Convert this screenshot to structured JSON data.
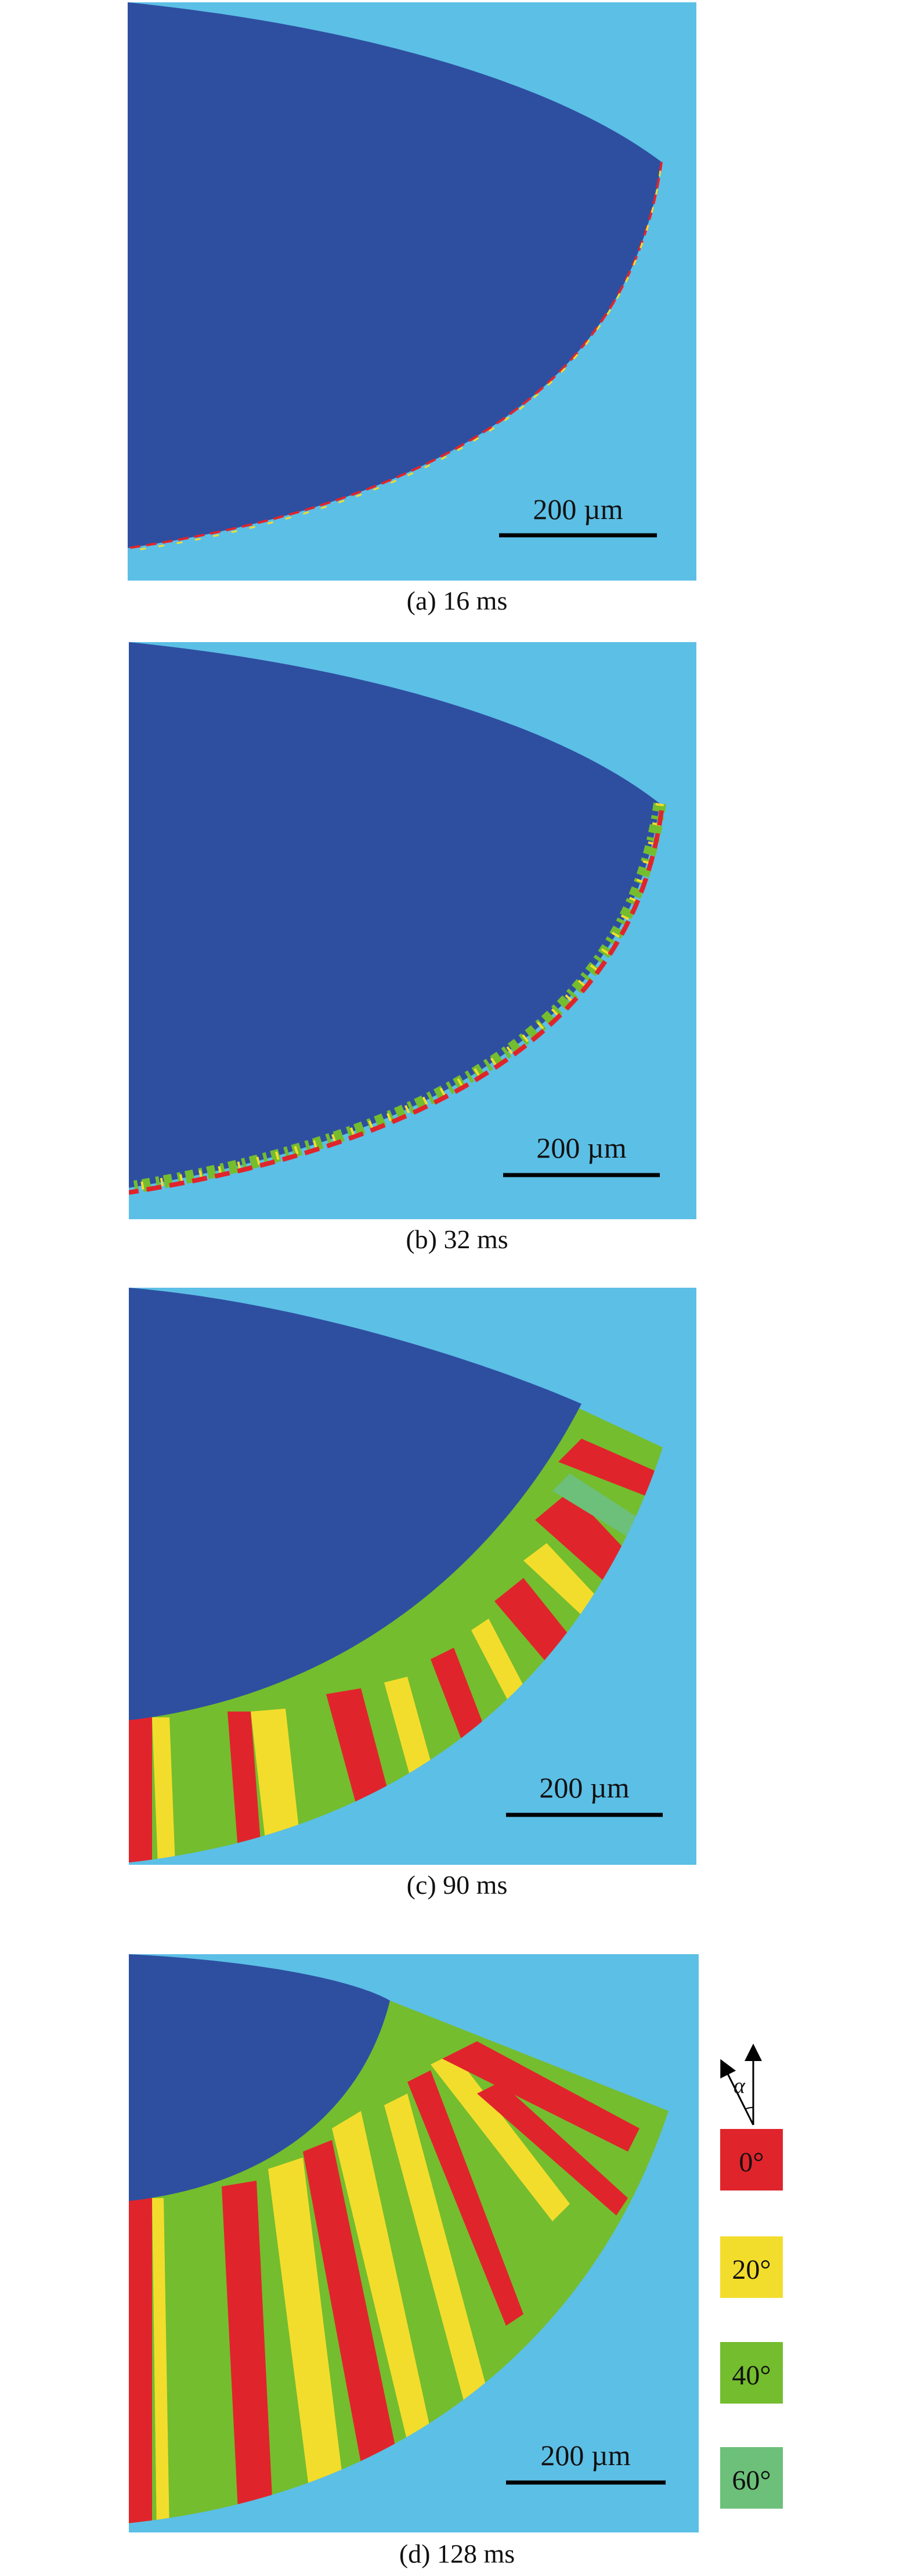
{
  "panels": [
    {
      "id": "a",
      "caption": "(a) 16 ms",
      "scale_bar": "200 µm"
    },
    {
      "id": "b",
      "caption": "(b) 32 ms",
      "scale_bar": "200 µm"
    },
    {
      "id": "c",
      "caption": "(c) 90 ms",
      "scale_bar": "200 µm"
    },
    {
      "id": "d",
      "caption": "(d) 128 ms",
      "scale_bar": "200 µm"
    }
  ],
  "legend": {
    "symbol": "α",
    "items": [
      {
        "label": "0°",
        "color": "#e0242c"
      },
      {
        "label": "20°",
        "color": "#f3dd2c"
      },
      {
        "label": "40°",
        "color": "#74bd2e"
      },
      {
        "label": "60°",
        "color": "#6cc079"
      }
    ]
  },
  "colors": {
    "background": "#5cbfe6",
    "melt_pool": "#2e4fa0"
  }
}
